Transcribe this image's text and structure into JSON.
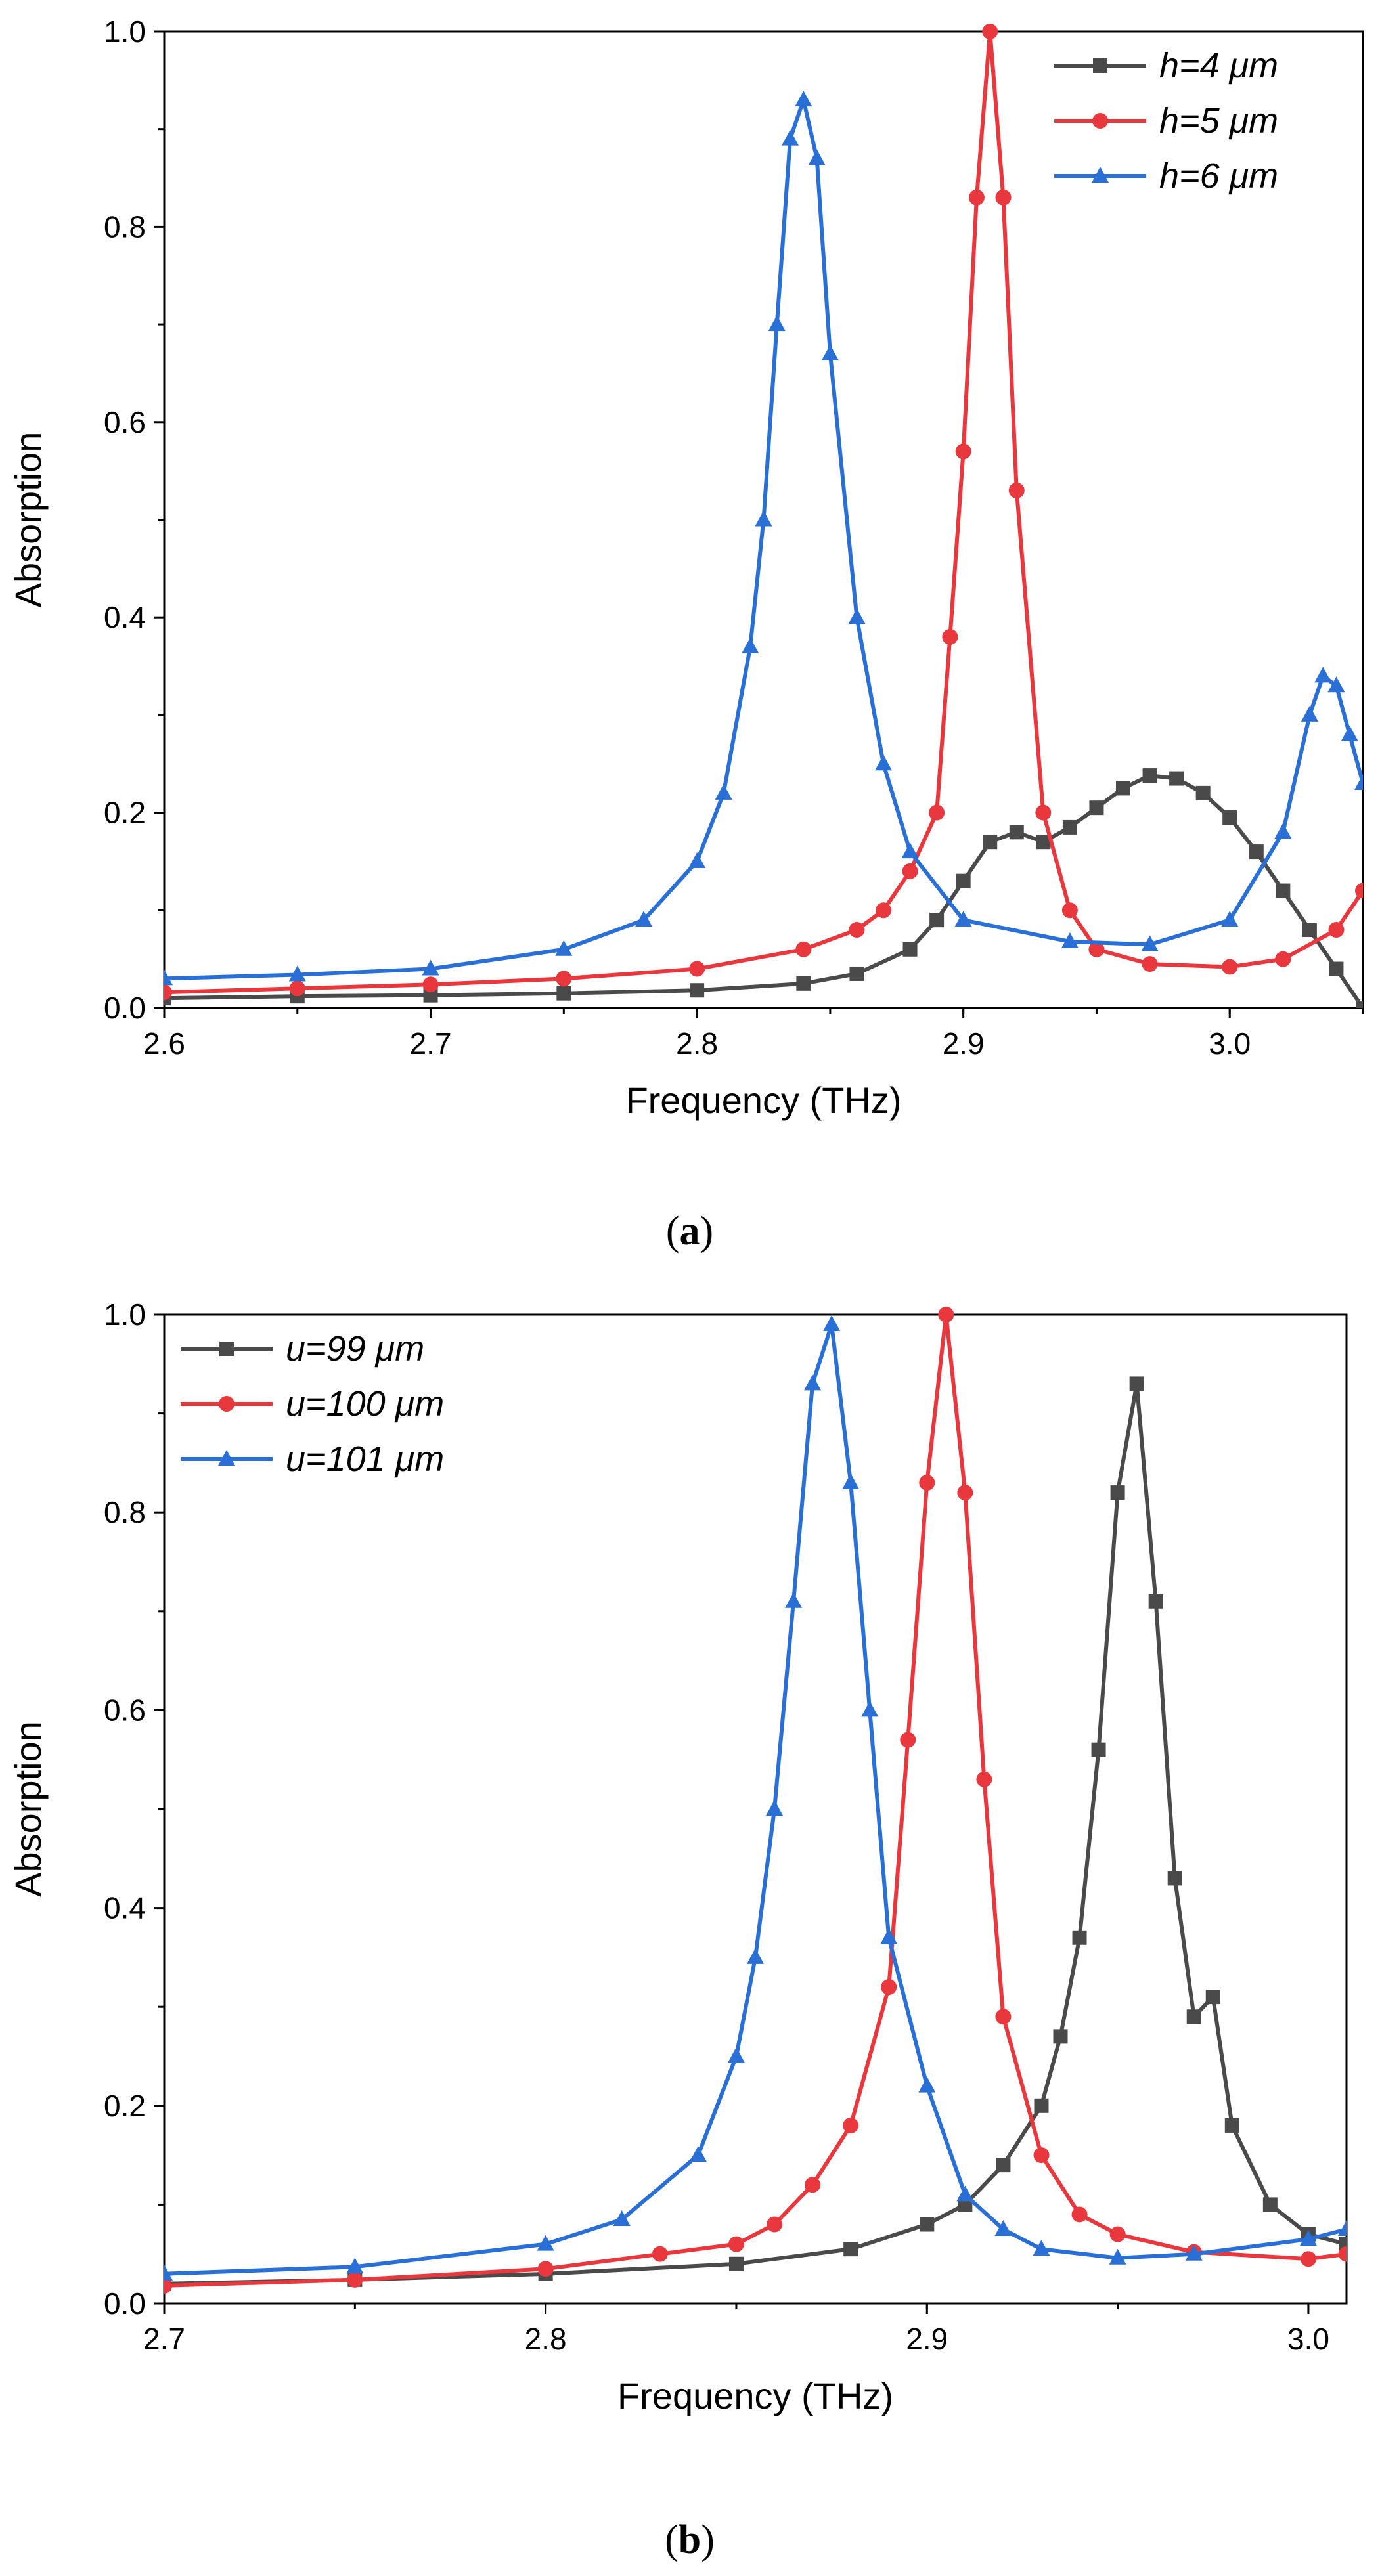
{
  "colors": {
    "black": "#4a4a4a",
    "red": "#e8383d",
    "blue": "#2a6fd6"
  },
  "chart_data": [
    {
      "type": "line",
      "caption": "a",
      "xlabel": "Frequency (THz)",
      "ylabel": "Absorption",
      "xlim": [
        2.6,
        3.05
      ],
      "ylim": [
        0.0,
        1.0
      ],
      "xticks": [
        "2.6",
        "2.7",
        "2.8",
        "2.9",
        "3.0"
      ],
      "yticks": [
        "0.0",
        "0.2",
        "0.4",
        "0.6",
        "0.8",
        "1.0"
      ],
      "legend_position": "top-right",
      "series": [
        {
          "name": "h=4 μm",
          "color": "black",
          "marker": "square",
          "x": [
            2.6,
            2.65,
            2.7,
            2.75,
            2.8,
            2.84,
            2.86,
            2.88,
            2.89,
            2.9,
            2.91,
            2.92,
            2.93,
            2.94,
            2.95,
            2.96,
            2.97,
            2.98,
            2.99,
            3.0,
            3.01,
            3.02,
            3.03,
            3.04,
            3.05
          ],
          "y": [
            0.01,
            0.012,
            0.013,
            0.015,
            0.018,
            0.025,
            0.035,
            0.06,
            0.09,
            0.13,
            0.17,
            0.18,
            0.17,
            0.185,
            0.205,
            0.225,
            0.238,
            0.235,
            0.22,
            0.195,
            0.16,
            0.12,
            0.08,
            0.04,
            0.0
          ]
        },
        {
          "name": "h=5 μm",
          "color": "red",
          "marker": "circle",
          "x": [
            2.6,
            2.65,
            2.7,
            2.75,
            2.8,
            2.84,
            2.86,
            2.87,
            2.88,
            2.89,
            2.895,
            2.9,
            2.905,
            2.91,
            2.915,
            2.92,
            2.93,
            2.94,
            2.95,
            2.97,
            3.0,
            3.02,
            3.04,
            3.05
          ],
          "y": [
            0.016,
            0.02,
            0.024,
            0.03,
            0.04,
            0.06,
            0.08,
            0.1,
            0.14,
            0.2,
            0.38,
            0.57,
            0.83,
            1.0,
            0.83,
            0.53,
            0.2,
            0.1,
            0.06,
            0.045,
            0.042,
            0.05,
            0.08,
            0.12
          ]
        },
        {
          "name": "h=6 μm",
          "color": "blue",
          "marker": "triangle",
          "x": [
            2.6,
            2.65,
            2.7,
            2.75,
            2.78,
            2.8,
            2.81,
            2.82,
            2.825,
            2.83,
            2.835,
            2.84,
            2.845,
            2.85,
            2.86,
            2.87,
            2.88,
            2.9,
            2.94,
            2.97,
            3.0,
            3.02,
            3.03,
            3.035,
            3.04,
            3.045,
            3.05
          ],
          "y": [
            0.03,
            0.034,
            0.04,
            0.06,
            0.09,
            0.15,
            0.22,
            0.37,
            0.5,
            0.7,
            0.89,
            0.93,
            0.87,
            0.67,
            0.4,
            0.25,
            0.16,
            0.09,
            0.068,
            0.065,
            0.09,
            0.18,
            0.3,
            0.34,
            0.33,
            0.28,
            0.23
          ]
        }
      ]
    },
    {
      "type": "line",
      "caption": "b",
      "xlabel": "Frequency (THz)",
      "ylabel": "Absorption",
      "xlim": [
        2.7,
        3.01
      ],
      "ylim": [
        0.0,
        1.0
      ],
      "xticks": [
        "2.7",
        "2.8",
        "2.9",
        "3.0"
      ],
      "yticks": [
        "0.0",
        "0.2",
        "0.4",
        "0.6",
        "0.8",
        "1.0"
      ],
      "legend_position": "top-left",
      "series": [
        {
          "name": "u=99 μm",
          "color": "black",
          "marker": "square",
          "x": [
            2.7,
            2.75,
            2.8,
            2.85,
            2.88,
            2.9,
            2.91,
            2.92,
            2.93,
            2.935,
            2.94,
            2.945,
            2.95,
            2.955,
            2.96,
            2.965,
            2.97,
            2.975,
            2.98,
            2.99,
            3.0,
            3.01
          ],
          "y": [
            0.02,
            0.024,
            0.03,
            0.04,
            0.055,
            0.08,
            0.1,
            0.14,
            0.2,
            0.27,
            0.37,
            0.56,
            0.82,
            0.93,
            0.71,
            0.43,
            0.29,
            0.31,
            0.18,
            0.1,
            0.07,
            0.06
          ]
        },
        {
          "name": "u=100 μm",
          "color": "red",
          "marker": "circle",
          "x": [
            2.7,
            2.75,
            2.8,
            2.83,
            2.85,
            2.86,
            2.87,
            2.88,
            2.89,
            2.895,
            2.9,
            2.905,
            2.91,
            2.915,
            2.92,
            2.93,
            2.94,
            2.95,
            2.97,
            3.0,
            3.01
          ],
          "y": [
            0.018,
            0.024,
            0.035,
            0.05,
            0.06,
            0.08,
            0.12,
            0.18,
            0.32,
            0.57,
            0.83,
            1.0,
            0.82,
            0.53,
            0.29,
            0.15,
            0.09,
            0.07,
            0.052,
            0.045,
            0.05
          ]
        },
        {
          "name": "u=101 μm",
          "color": "blue",
          "marker": "triangle",
          "x": [
            2.7,
            2.75,
            2.8,
            2.82,
            2.84,
            2.85,
            2.855,
            2.86,
            2.865,
            2.87,
            2.875,
            2.88,
            2.885,
            2.89,
            2.9,
            2.91,
            2.92,
            2.93,
            2.95,
            2.97,
            3.0,
            3.01
          ],
          "y": [
            0.03,
            0.037,
            0.06,
            0.085,
            0.15,
            0.25,
            0.35,
            0.5,
            0.71,
            0.93,
            0.99,
            0.83,
            0.6,
            0.37,
            0.22,
            0.11,
            0.075,
            0.055,
            0.046,
            0.05,
            0.065,
            0.075
          ]
        }
      ]
    }
  ]
}
